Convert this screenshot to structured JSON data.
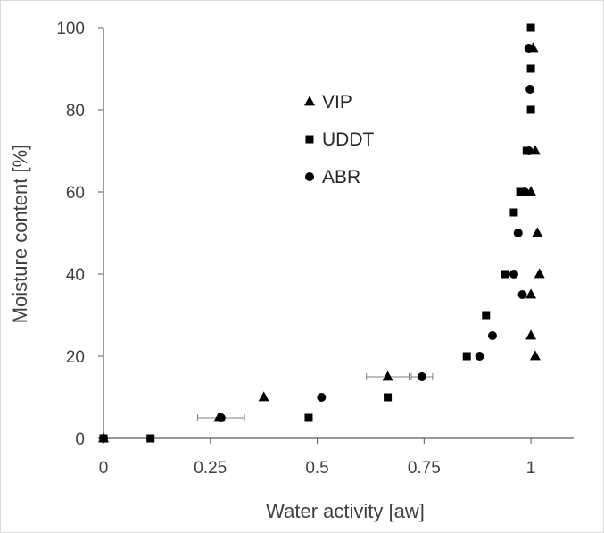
{
  "chart_data": {
    "type": "scatter",
    "title": "",
    "xlabel": "Water activity [aw]",
    "ylabel": "Moisture content [%]",
    "xlim": [
      0,
      1.1
    ],
    "ylim": [
      0,
      100
    ],
    "x_ticks": [
      {
        "value": 0,
        "label": "0"
      },
      {
        "value": 0.25,
        "label": "0.25"
      },
      {
        "value": 0.5,
        "label": "0.5"
      },
      {
        "value": 0.75,
        "label": "0.75"
      },
      {
        "value": 1,
        "label": "1"
      }
    ],
    "y_ticks": [
      {
        "value": 0,
        "label": "0"
      },
      {
        "value": 20,
        "label": "20"
      },
      {
        "value": 40,
        "label": "40"
      },
      {
        "value": 60,
        "label": "60"
      },
      {
        "value": 80,
        "label": "80"
      },
      {
        "value": 100,
        "label": "100"
      }
    ],
    "grid": false,
    "legend_position": "upper-left-center",
    "marker_color": "#000000",
    "series": [
      {
        "name": "VIP",
        "marker": "triangle",
        "points": [
          {
            "x": 0,
            "y": 0
          },
          {
            "x": 0.27,
            "y": 5
          },
          {
            "x": 0.375,
            "y": 10
          },
          {
            "x": 0.665,
            "y": 15,
            "xerr": 0.05
          },
          {
            "x": 1.01,
            "y": 20
          },
          {
            "x": 1.0,
            "y": 25
          },
          {
            "x": 1.0,
            "y": 35
          },
          {
            "x": 1.02,
            "y": 40
          },
          {
            "x": 1.015,
            "y": 50
          },
          {
            "x": 1.0,
            "y": 60
          },
          {
            "x": 1.01,
            "y": 70
          },
          {
            "x": 1.005,
            "y": 95
          }
        ]
      },
      {
        "name": "UDDT",
        "marker": "square",
        "points": [
          {
            "x": 0,
            "y": 0
          },
          {
            "x": 0.11,
            "y": 0
          },
          {
            "x": 0.48,
            "y": 5
          },
          {
            "x": 0.665,
            "y": 10
          },
          {
            "x": 0.85,
            "y": 20
          },
          {
            "x": 0.895,
            "y": 30
          },
          {
            "x": 0.94,
            "y": 40
          },
          {
            "x": 0.96,
            "y": 55
          },
          {
            "x": 0.975,
            "y": 60
          },
          {
            "x": 0.99,
            "y": 70
          },
          {
            "x": 1.0,
            "y": 80
          },
          {
            "x": 1.0,
            "y": 90
          },
          {
            "x": 1.0,
            "y": 100
          }
        ]
      },
      {
        "name": "ABR",
        "marker": "circle",
        "points": [
          {
            "x": 0,
            "y": 0
          },
          {
            "x": 0.275,
            "y": 5,
            "xerr": 0.055
          },
          {
            "x": 0.51,
            "y": 10
          },
          {
            "x": 0.745,
            "y": 15,
            "xerr": 0.025
          },
          {
            "x": 0.88,
            "y": 20
          },
          {
            "x": 0.91,
            "y": 25
          },
          {
            "x": 0.98,
            "y": 35
          },
          {
            "x": 0.96,
            "y": 40
          },
          {
            "x": 0.97,
            "y": 50
          },
          {
            "x": 0.985,
            "y": 60
          },
          {
            "x": 0.995,
            "y": 70
          },
          {
            "x": 0.998,
            "y": 85
          },
          {
            "x": 0.995,
            "y": 95
          }
        ]
      }
    ]
  }
}
